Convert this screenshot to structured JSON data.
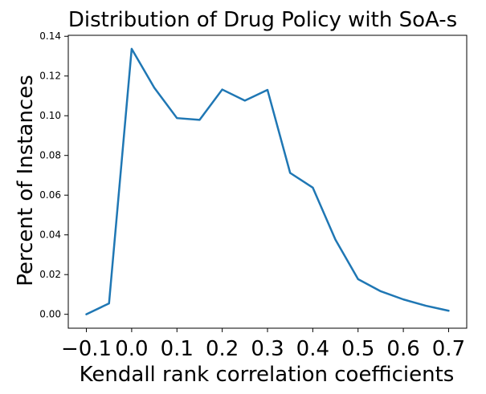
{
  "chart_data": {
    "type": "line",
    "title": "Distribution of Drug Policy with SoA-s",
    "xlabel": "Kendall rank correlation coefficients",
    "ylabel": "Percent of Instances",
    "xlim": [
      -0.14,
      0.74
    ],
    "ylim": [
      -0.007,
      0.1405
    ],
    "xticks": [
      -0.1,
      0.0,
      0.1,
      0.2,
      0.3,
      0.4,
      0.5,
      0.6,
      0.7
    ],
    "xtick_labels": [
      "−0.1",
      "0.0",
      "0.1",
      "0.2",
      "0.3",
      "0.4",
      "0.5",
      "0.6",
      "0.7"
    ],
    "yticks": [
      0.0,
      0.02,
      0.04,
      0.06,
      0.08,
      0.1,
      0.12,
      0.14
    ],
    "ytick_labels": [
      "0.00",
      "0.02",
      "0.04",
      "0.06",
      "0.08",
      "0.10",
      "0.12",
      "0.14"
    ],
    "grid": false,
    "series": [
      {
        "color": "#1f77b4",
        "x": [
          -0.1,
          -0.05,
          0.0,
          0.05,
          0.1,
          0.15,
          0.2,
          0.25,
          0.3,
          0.35,
          0.4,
          0.45,
          0.5,
          0.55,
          0.6,
          0.65,
          0.7
        ],
        "y": [
          0.0,
          0.0055,
          0.1337,
          0.1141,
          0.0988,
          0.0979,
          0.1132,
          0.1076,
          0.113,
          0.0712,
          0.0638,
          0.0376,
          0.0177,
          0.0116,
          0.0075,
          0.0043,
          0.0018
        ]
      }
    ]
  }
}
